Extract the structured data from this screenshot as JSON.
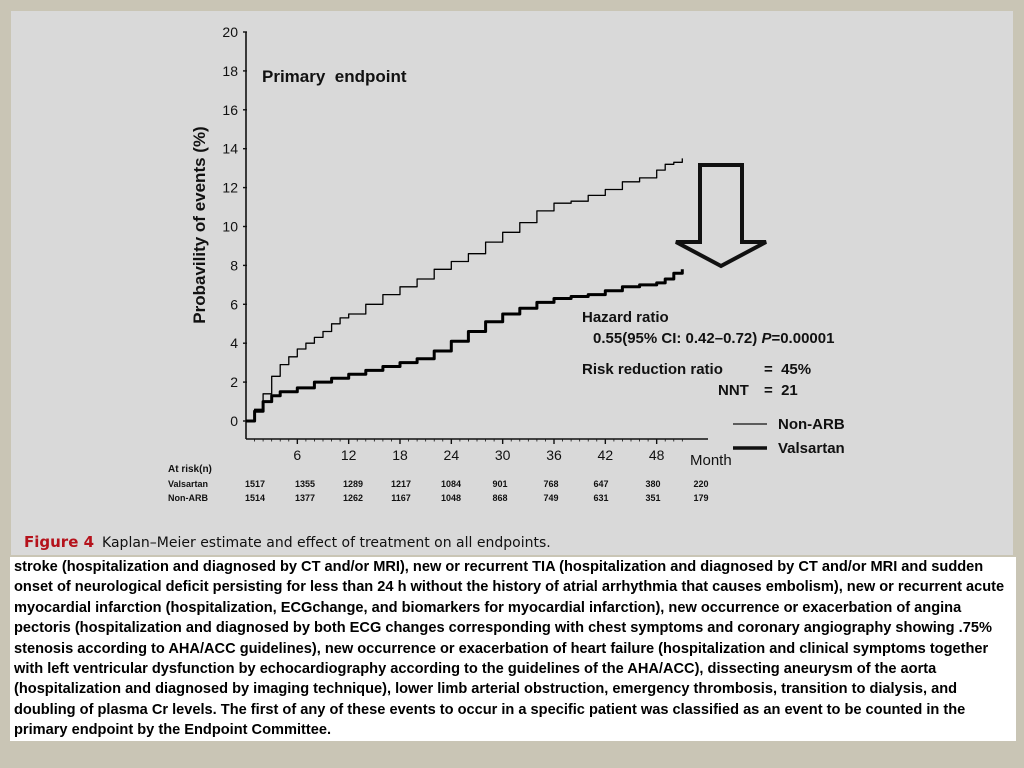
{
  "chart_data": {
    "type": "line",
    "title": "Primary  endpoint",
    "xlabel": "Month",
    "ylabel": "Probavility of events (%)",
    "xlim": [
      0,
      54
    ],
    "ylim": [
      0,
      20
    ],
    "x_ticks": [
      "6",
      "12",
      "18",
      "24",
      "30",
      "36",
      "42",
      "48"
    ],
    "y_ticks": [
      "0",
      "2",
      "4",
      "6",
      "8",
      "10",
      "12",
      "14",
      "16",
      "18",
      "20"
    ],
    "legend_position": "bottom-right",
    "series": [
      {
        "name": "Non-ARB",
        "color": "#000000",
        "line_style": "thin",
        "points": [
          [
            0,
            0
          ],
          [
            1,
            0.6
          ],
          [
            2,
            1.4
          ],
          [
            3,
            2.3
          ],
          [
            4,
            2.9
          ],
          [
            5,
            3.3
          ],
          [
            6,
            3.7
          ],
          [
            7,
            4.0
          ],
          [
            8,
            4.3
          ],
          [
            9,
            4.6
          ],
          [
            10,
            5.0
          ],
          [
            11,
            5.3
          ],
          [
            12,
            5.5
          ],
          [
            14,
            6.0
          ],
          [
            16,
            6.5
          ],
          [
            18,
            6.9
          ],
          [
            20,
            7.3
          ],
          [
            22,
            7.8
          ],
          [
            24,
            8.2
          ],
          [
            26,
            8.6
          ],
          [
            28,
            9.2
          ],
          [
            30,
            9.7
          ],
          [
            32,
            10.2
          ],
          [
            34,
            10.8
          ],
          [
            36,
            11.2
          ],
          [
            38,
            11.3
          ],
          [
            40,
            11.6
          ],
          [
            42,
            11.9
          ],
          [
            44,
            12.3
          ],
          [
            46,
            12.5
          ],
          [
            48,
            12.9
          ],
          [
            49,
            13.2
          ],
          [
            50,
            13.3
          ],
          [
            51,
            13.5
          ]
        ]
      },
      {
        "name": "Valsartan",
        "color": "#000000",
        "line_style": "thick",
        "points": [
          [
            0,
            0
          ],
          [
            1,
            0.5
          ],
          [
            2,
            1.0
          ],
          [
            3,
            1.3
          ],
          [
            4,
            1.5
          ],
          [
            6,
            1.7
          ],
          [
            8,
            2.0
          ],
          [
            10,
            2.2
          ],
          [
            12,
            2.4
          ],
          [
            14,
            2.6
          ],
          [
            16,
            2.8
          ],
          [
            18,
            3.0
          ],
          [
            20,
            3.2
          ],
          [
            22,
            3.6
          ],
          [
            24,
            4.1
          ],
          [
            26,
            4.6
          ],
          [
            28,
            5.1
          ],
          [
            30,
            5.5
          ],
          [
            32,
            5.8
          ],
          [
            34,
            6.1
          ],
          [
            36,
            6.3
          ],
          [
            38,
            6.4
          ],
          [
            40,
            6.5
          ],
          [
            42,
            6.7
          ],
          [
            44,
            6.9
          ],
          [
            46,
            7.0
          ],
          [
            48,
            7.1
          ],
          [
            49,
            7.3
          ],
          [
            50,
            7.6
          ],
          [
            51,
            7.8
          ]
        ]
      }
    ],
    "annotations": {
      "hazard_title": "Hazard ratio",
      "hazard_value_prefix": "0.55(95% CI: 0.42–0.72) ",
      "hazard_p_label": "P",
      "hazard_p_value": "=0.00001",
      "risk_reduction_label": "Risk reduction ratio",
      "risk_reduction_value": "=  45%",
      "nnt_label": "NNT",
      "nnt_value": "=  21"
    },
    "at_risk": {
      "header": "At risk(n)",
      "rows": [
        {
          "label": "Valsartan",
          "values": [
            "1517",
            "1355",
            "1289",
            "1217",
            "1084",
            "901",
            "768",
            "647",
            "380",
            "220"
          ]
        },
        {
          "label": "Non-ARB",
          "values": [
            "1514",
            "1377",
            "1262",
            "1167",
            "1048",
            "868",
            "749",
            "631",
            "351",
            "179"
          ]
        }
      ]
    }
  },
  "caption": {
    "figure_label": "Figure 4",
    "text": "Kaplan–Meier estimate and effect of treatment on all endpoints."
  },
  "body_text": "stroke (hospitalization and diagnosed by CT and/or MRI), new or recurrent TIA (hospitalization and diagnosed by CT and/or MRI and sudden onset of neurological deficit persisting for less than 24 h without the history of atrial arrhythmia that causes embolism), new or recurrent acute myocardial infarction (hospitalization, ECGchange, and biomarkers for myocardial infarction), new occurrence or exacerbation of angina pectoris (hospitalization and diagnosed by both ECG changes corresponding with chest symptoms and coronary angiography showing .75% stenosis according to AHA/ACC guidelines), new occurrence or exacerbation of heart failure (hospitalization and clinical symptoms together with left ventricular dysfunction by echocardiography according to the guidelines of the AHA/ACC), dissecting aneurysm of the aorta (hospitalization and diagnosed by imaging technique), lower limb arterial obstruction, emergency thrombosis, transition to dialysis, and doubling of plasma Cr levels. The first of any of these events to occur in a specific patient was classified as an event to be counted in the primary endpoint by the Endpoint Committee."
}
